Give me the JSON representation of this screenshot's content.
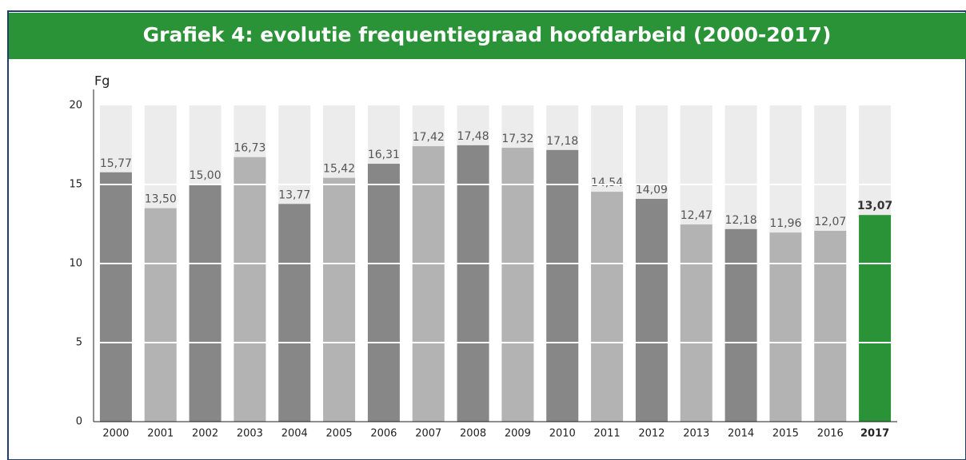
{
  "chart_data": {
    "type": "bar",
    "title": "Grafiek 4: evolutie frequentiegraad hoofdarbeid (2000-2017)",
    "y_label": "Fg",
    "categories": [
      "2000",
      "2001",
      "2002",
      "2003",
      "2004",
      "2005",
      "2006",
      "2007",
      "2008",
      "2009",
      "2010",
      "2011",
      "2012",
      "2013",
      "2014",
      "2015",
      "2016",
      "2017"
    ],
    "values": [
      15.77,
      13.5,
      15,
      16.73,
      13.77,
      15.42,
      16.31,
      17.42,
      17.48,
      17.32,
      17.18,
      14.54,
      14.09,
      12.47,
      12.18,
      11.96,
      12.07,
      13.07
    ],
    "value_labels": [
      "15,77",
      "13,50",
      "15,00",
      "16,73",
      "13,77",
      "15,42",
      "16,31",
      "17,42",
      "17,48",
      "17,32",
      "17,18",
      "14,54",
      "14,09",
      "12,47",
      "12,18",
      "11,96",
      "12,07",
      "13,07"
    ],
    "colors": [
      "#878787",
      "#b3b3b3",
      "#878787",
      "#b3b3b3",
      "#878787",
      "#b3b3b3",
      "#878787",
      "#b3b3b3",
      "#878787",
      "#b3b3b3",
      "#878787",
      "#b3b3b3",
      "#878787",
      "#b3b3b3",
      "#878787",
      "#b3b3b3",
      "#b3b3b3",
      "#2a9237"
    ],
    "ylim": [
      0,
      20
    ],
    "yticks": [
      0,
      5,
      10,
      15,
      20
    ],
    "grid": true
  }
}
